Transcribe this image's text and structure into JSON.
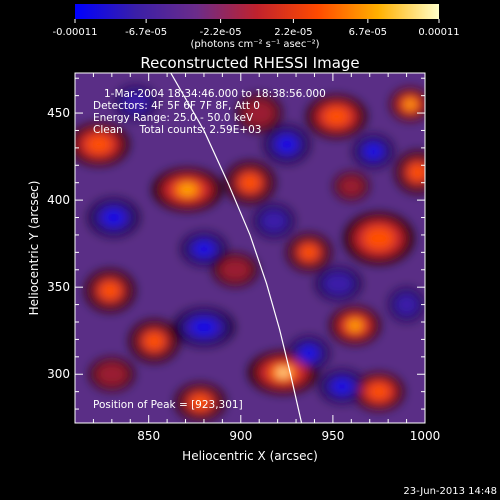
{
  "colorbar": {
    "ticks": [
      "-0.00011",
      "-6.7e-05",
      "-2.2e-05",
      "2.2e-05",
      "6.7e-05",
      "0.00011"
    ],
    "tick_values": [
      -0.00011,
      -6.7e-05,
      -2.2e-05,
      2.2e-05,
      6.7e-05,
      0.00011
    ],
    "units": "(photons cm⁻² s⁻¹ asec⁻²)",
    "colors": [
      "#0000ff",
      "#3a1fa8",
      "#6b2c8a",
      "#c0222d",
      "#ff4a00",
      "#ffb000",
      "#ffffc8"
    ]
  },
  "chart_data": {
    "type": "heatmap",
    "title": "Reconstructed RHESSI Image",
    "xlabel": "Heliocentric X (arcsec)",
    "ylabel": "Heliocentric Y (arcsec)",
    "xlim": [
      810,
      1000
    ],
    "ylim": [
      272,
      473
    ],
    "x_ticks": [
      850,
      900,
      950,
      1000
    ],
    "y_ticks": [
      300,
      350,
      400,
      450
    ],
    "annotations": [
      "1-Mar-2004 18:34:46.000 to 18:38:56.000",
      "Detectors: 4F 5F 6F 7F 8F, Att 0",
      "Energy Range: 25.0 - 50.0 keV",
      "Clean     Total counts: 2.59E+03"
    ],
    "peak_label": "Position of Peak = [923,301]",
    "peak": [
      923,
      301
    ],
    "limb_curve": [
      [
        862,
        473
      ],
      [
        880,
        440
      ],
      [
        893,
        410
      ],
      [
        905,
        380
      ],
      [
        914,
        352
      ],
      [
        921,
        326
      ],
      [
        927,
        300
      ],
      [
        933,
        272
      ]
    ],
    "sources": [
      {
        "x": 923,
        "y": 301,
        "rx": 14,
        "ry": 9,
        "level": 1.0
      },
      {
        "x": 871,
        "y": 406,
        "rx": 14,
        "ry": 9,
        "level": 0.85
      },
      {
        "x": 962,
        "y": 328,
        "rx": 10,
        "ry": 8,
        "level": 0.9
      },
      {
        "x": 992,
        "y": 455,
        "rx": 8,
        "ry": 7,
        "level": 0.85
      },
      {
        "x": 975,
        "y": 378,
        "rx": 14,
        "ry": 11,
        "level": 0.7
      },
      {
        "x": 823,
        "y": 432,
        "rx": 12,
        "ry": 9,
        "level": 0.7
      },
      {
        "x": 952,
        "y": 448,
        "rx": 12,
        "ry": 9,
        "level": 0.65
      },
      {
        "x": 975,
        "y": 290,
        "rx": 10,
        "ry": 8,
        "level": 0.65
      },
      {
        "x": 905,
        "y": 410,
        "rx": 10,
        "ry": 9,
        "level": 0.6
      },
      {
        "x": 853,
        "y": 319,
        "rx": 10,
        "ry": 9,
        "level": 0.55
      },
      {
        "x": 829,
        "y": 348,
        "rx": 10,
        "ry": 9,
        "level": 0.5
      },
      {
        "x": 878,
        "y": 284,
        "rx": 10,
        "ry": 8,
        "level": 0.5
      },
      {
        "x": 937,
        "y": 370,
        "rx": 9,
        "ry": 8,
        "level": 0.55
      },
      {
        "x": 996,
        "y": 416,
        "rx": 9,
        "ry": 9,
        "level": 0.55
      },
      {
        "x": 910,
        "y": 450,
        "rx": 9,
        "ry": 8,
        "level": 0.45
      },
      {
        "x": 897,
        "y": 360,
        "rx": 9,
        "ry": 7,
        "level": 0.35
      },
      {
        "x": 830,
        "y": 300,
        "rx": 9,
        "ry": 7,
        "level": 0.4
      },
      {
        "x": 960,
        "y": 408,
        "rx": 7,
        "ry": 6,
        "level": 0.4
      }
    ],
    "dips": [
      {
        "x": 880,
        "y": 327,
        "rx": 12,
        "ry": 8,
        "level": 0.95
      },
      {
        "x": 831,
        "y": 390,
        "rx": 10,
        "ry": 8,
        "level": 0.85
      },
      {
        "x": 955,
        "y": 293,
        "rx": 9,
        "ry": 7,
        "level": 0.75
      },
      {
        "x": 880,
        "y": 372,
        "rx": 9,
        "ry": 7,
        "level": 0.7
      },
      {
        "x": 937,
        "y": 312,
        "rx": 8,
        "ry": 7,
        "level": 0.7
      },
      {
        "x": 925,
        "y": 432,
        "rx": 9,
        "ry": 8,
        "level": 0.6
      },
      {
        "x": 972,
        "y": 428,
        "rx": 8,
        "ry": 7,
        "level": 0.6
      },
      {
        "x": 953,
        "y": 352,
        "rx": 9,
        "ry": 7,
        "level": 0.55
      },
      {
        "x": 918,
        "y": 388,
        "rx": 8,
        "ry": 7,
        "level": 0.55
      },
      {
        "x": 843,
        "y": 456,
        "rx": 8,
        "ry": 7,
        "level": 0.5
      },
      {
        "x": 990,
        "y": 340,
        "rx": 7,
        "ry": 7,
        "level": 0.5
      }
    ]
  },
  "footer": {
    "timestamp": "23-Jun-2013 14:48"
  }
}
